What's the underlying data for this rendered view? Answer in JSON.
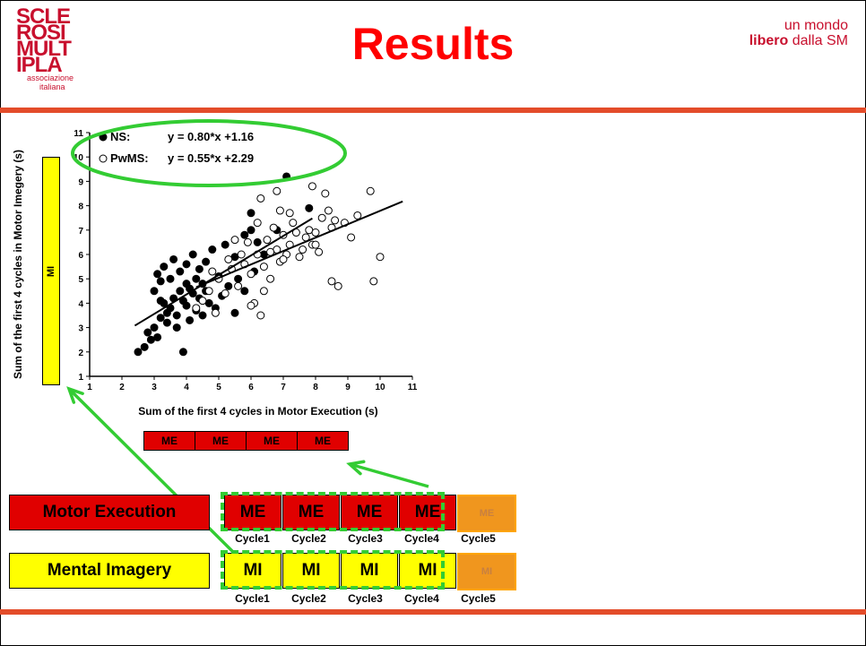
{
  "header": {
    "logo_lines": [
      "SCLE",
      "ROSI",
      "MULT",
      "IPLA"
    ],
    "logo_sub1": "associazione",
    "logo_sub2": "italiana",
    "title": "Results",
    "tagline_line1": "un mondo",
    "tagline_bold": "libero",
    "tagline_rest": " dalla SM"
  },
  "colors": {
    "accent": "#ff0000",
    "bar": "#e34c2a",
    "green": "#33cc33",
    "yellow": "#ffff00",
    "red": "#e00000",
    "orange": "#f0961e"
  },
  "chart_data": {
    "type": "scatter",
    "xlabel": "Sum of the first 4 cycles in Motor Execution (s)",
    "ylabel": "Sum of the first 4 cycles in Motor Imegery (s)",
    "xlim": [
      1,
      11
    ],
    "ylim": [
      1,
      11
    ],
    "xticks": [
      "1",
      "2",
      "3",
      "4",
      "5",
      "6",
      "7",
      "8",
      "9",
      "10",
      "11"
    ],
    "yticks": [
      "1",
      "2",
      "3",
      "4",
      "5",
      "6",
      "7",
      "8",
      "9",
      "10",
      "11"
    ],
    "legend_position": "top-left",
    "legend": [
      {
        "name": "NS:",
        "equation": "y = 0.80*x +1.16"
      },
      {
        "name": "PwMS:",
        "equation": "y = 0.55*x +2.29"
      }
    ],
    "series": [
      {
        "name": "NS",
        "marker": "filled",
        "slope": 0.8,
        "intercept": 1.16,
        "fit_x": [
          2.4,
          7.9
        ],
        "points": [
          [
            2.5,
            2.0
          ],
          [
            2.7,
            2.2
          ],
          [
            2.8,
            2.8
          ],
          [
            2.9,
            2.5
          ],
          [
            3.0,
            3.0
          ],
          [
            3.1,
            2.6
          ],
          [
            3.2,
            3.4
          ],
          [
            3.3,
            4.0
          ],
          [
            3.4,
            3.6
          ],
          [
            3.5,
            3.8
          ],
          [
            3.6,
            4.2
          ],
          [
            3.7,
            3.5
          ],
          [
            3.8,
            4.5
          ],
          [
            3.9,
            4.1
          ],
          [
            4.0,
            3.9
          ],
          [
            4.1,
            4.6
          ],
          [
            4.2,
            4.4
          ],
          [
            4.3,
            5.0
          ],
          [
            4.4,
            4.2
          ],
          [
            4.5,
            4.8
          ],
          [
            3.0,
            4.5
          ],
          [
            3.1,
            5.2
          ],
          [
            3.2,
            4.9
          ],
          [
            3.3,
            5.5
          ],
          [
            3.5,
            5.0
          ],
          [
            3.6,
            5.8
          ],
          [
            3.8,
            5.3
          ],
          [
            4.0,
            5.6
          ],
          [
            4.2,
            6.0
          ],
          [
            4.4,
            5.4
          ],
          [
            4.6,
            5.7
          ],
          [
            4.8,
            6.2
          ],
          [
            5.0,
            5.1
          ],
          [
            5.2,
            6.4
          ],
          [
            5.5,
            5.9
          ],
          [
            5.8,
            6.8
          ],
          [
            6.0,
            7.0
          ],
          [
            6.2,
            6.5
          ],
          [
            3.4,
            3.2
          ],
          [
            3.7,
            3.0
          ],
          [
            3.9,
            2.0
          ],
          [
            4.1,
            3.3
          ],
          [
            4.3,
            3.7
          ],
          [
            4.5,
            3.5
          ],
          [
            4.7,
            4.0
          ],
          [
            4.9,
            3.8
          ],
          [
            5.1,
            4.3
          ],
          [
            5.3,
            4.7
          ],
          [
            5.5,
            3.6
          ],
          [
            5.8,
            4.5
          ],
          [
            6.1,
            5.3
          ],
          [
            6.4,
            6.0
          ],
          [
            6.8,
            7.0
          ],
          [
            7.1,
            9.2
          ],
          [
            7.8,
            7.9
          ],
          [
            6.0,
            7.7
          ],
          [
            5.6,
            5.0
          ],
          [
            3.2,
            4.1
          ],
          [
            4.0,
            4.8
          ],
          [
            4.6,
            4.5
          ]
        ]
      },
      {
        "name": "PwMS",
        "marker": "open",
        "slope": 0.55,
        "intercept": 2.29,
        "fit_x": [
          4.3,
          10.7
        ],
        "points": [
          [
            4.3,
            3.8
          ],
          [
            4.5,
            4.1
          ],
          [
            4.7,
            4.5
          ],
          [
            4.9,
            3.6
          ],
          [
            5.0,
            5.0
          ],
          [
            5.2,
            4.4
          ],
          [
            5.4,
            5.4
          ],
          [
            5.6,
            4.7
          ],
          [
            5.8,
            5.6
          ],
          [
            6.0,
            5.2
          ],
          [
            6.1,
            4.0
          ],
          [
            6.2,
            6.0
          ],
          [
            6.3,
            3.5
          ],
          [
            6.4,
            5.5
          ],
          [
            6.5,
            6.6
          ],
          [
            6.6,
            5.0
          ],
          [
            6.7,
            7.1
          ],
          [
            6.8,
            6.2
          ],
          [
            6.9,
            5.7
          ],
          [
            7.0,
            6.8
          ],
          [
            7.1,
            6.0
          ],
          [
            7.2,
            6.4
          ],
          [
            7.3,
            7.3
          ],
          [
            7.4,
            6.9
          ],
          [
            7.5,
            5.9
          ],
          [
            7.6,
            6.2
          ],
          [
            7.7,
            6.7
          ],
          [
            7.8,
            7.0
          ],
          [
            7.9,
            6.4
          ],
          [
            8.0,
            6.9
          ],
          [
            8.1,
            6.1
          ],
          [
            8.2,
            7.5
          ],
          [
            8.4,
            7.8
          ],
          [
            8.5,
            7.1
          ],
          [
            8.6,
            7.4
          ],
          [
            8.7,
            4.7
          ],
          [
            8.9,
            7.3
          ],
          [
            9.1,
            6.7
          ],
          [
            9.3,
            7.6
          ],
          [
            10.0,
            5.9
          ],
          [
            9.8,
            4.9
          ],
          [
            9.7,
            8.6
          ],
          [
            8.3,
            8.5
          ],
          [
            7.9,
            8.8
          ],
          [
            6.3,
            8.3
          ],
          [
            6.8,
            8.6
          ],
          [
            6.2,
            7.3
          ],
          [
            5.9,
            6.5
          ],
          [
            5.7,
            6.0
          ],
          [
            5.5,
            6.6
          ],
          [
            6.6,
            6.1
          ],
          [
            7.2,
            7.7
          ],
          [
            8.0,
            6.4
          ],
          [
            8.5,
            4.9
          ],
          [
            7.0,
            5.8
          ],
          [
            6.4,
            4.5
          ],
          [
            6.0,
            3.9
          ],
          [
            5.3,
            5.8
          ],
          [
            4.8,
            5.3
          ],
          [
            6.9,
            7.8
          ]
        ]
      }
    ]
  },
  "mi_column_label": "MI",
  "me_strip": [
    "ME",
    "ME",
    "ME",
    "ME"
  ],
  "rows": {
    "motor_execution": {
      "label": "Motor Execution",
      "cells": [
        "ME",
        "ME",
        "ME",
        "ME"
      ],
      "ghost": "ME"
    },
    "mental_imagery": {
      "label": "Mental Imagery",
      "cells": [
        "MI",
        "MI",
        "MI",
        "MI"
      ],
      "ghost": "MI"
    }
  },
  "cycle_labels": [
    "Cycle1",
    "Cycle2",
    "Cycle3",
    "Cycle4",
    "Cycle5"
  ]
}
